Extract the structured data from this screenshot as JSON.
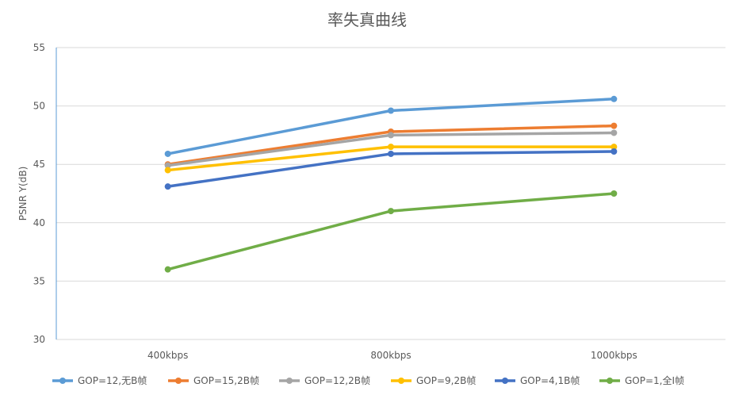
{
  "chart_data": {
    "type": "line",
    "title": "率失真曲线",
    "xlabel": "",
    "ylabel": "PSNR Y(dB)",
    "categories": [
      "400kbps",
      "800kbps",
      "1000kbps"
    ],
    "ylim": [
      30,
      55
    ],
    "yticks": [
      30,
      35,
      40,
      45,
      50,
      55
    ],
    "grid": true,
    "legend_position": "bottom",
    "series": [
      {
        "name": "GOP=12,无B帧",
        "color": "#5B9BD5",
        "values": [
          45.9,
          49.6,
          50.6
        ]
      },
      {
        "name": "GOP=15,2B帧",
        "color": "#ED7D31",
        "values": [
          45.0,
          47.8,
          48.3
        ]
      },
      {
        "name": "GOP=12,2B帧",
        "color": "#A5A5A5",
        "values": [
          44.9,
          47.5,
          47.7
        ]
      },
      {
        "name": "GOP=9,2B帧",
        "color": "#FFC000",
        "values": [
          44.5,
          46.5,
          46.5
        ]
      },
      {
        "name": "GOP=4,1B帧",
        "color": "#4472C4",
        "values": [
          43.1,
          45.9,
          46.1
        ]
      },
      {
        "name": "GOP=1,全I帧",
        "color": "#70AD47",
        "values": [
          36.0,
          41.0,
          42.5
        ]
      }
    ]
  }
}
